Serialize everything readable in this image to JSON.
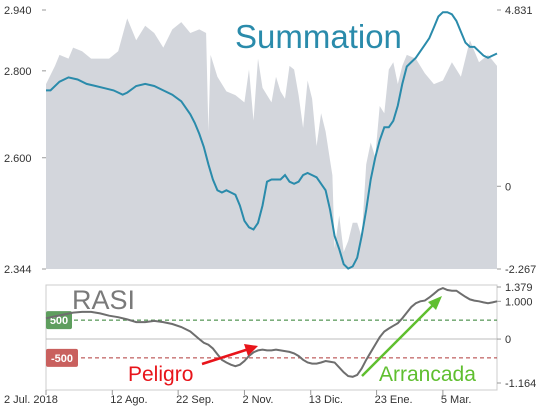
{
  "chart_data": [
    {
      "type": "area",
      "title": "Summation",
      "left_axis": {
        "ylim": [
          2.344,
          2.94
        ],
        "ticks": [
          "2.940",
          "2.800",
          "2.600",
          "2.344"
        ]
      },
      "right_axis": {
        "ylim": [
          -2.267,
          4.831
        ],
        "ticks": [
          "4.831",
          "0",
          "-2.267"
        ]
      },
      "x_labels": [
        "2 Jul. 2018",
        "12 Ago.",
        "22 Sep.",
        "2 Nov.",
        "13 Dic.",
        "23 Ene.",
        "5 Mar."
      ],
      "x_range": [
        0,
        100
      ],
      "x_label_pos": [
        0,
        14.7,
        29.3,
        44,
        58.7,
        73.3,
        88
      ],
      "series": [
        {
          "axis": "right",
          "style": "area",
          "x": [
            0,
            2,
            3,
            5,
            6,
            8,
            10,
            12,
            14,
            16,
            18,
            20,
            22,
            24,
            26,
            28,
            30,
            32,
            34,
            35.5,
            36,
            36.5,
            38,
            40,
            42,
            43,
            44,
            45,
            46,
            47,
            48,
            49,
            50,
            51,
            52,
            53,
            54,
            55,
            56,
            57,
            58,
            59,
            60,
            61,
            62,
            63,
            63.5,
            64,
            65,
            66,
            67,
            68,
            69,
            70,
            71,
            72,
            73,
            74,
            75,
            76,
            77,
            78,
            79,
            80,
            82,
            84,
            86,
            88,
            90,
            92,
            94,
            96,
            98,
            100
          ],
          "y": [
            2.8,
            3.3,
            3.6,
            3.5,
            3.8,
            3.7,
            3.5,
            3.5,
            3.5,
            3.7,
            4.6,
            4.0,
            4.4,
            4.2,
            3.8,
            4.3,
            4.5,
            4.2,
            4.3,
            4.2,
            1.5,
            3.6,
            3.0,
            2.6,
            2.5,
            2.4,
            2.3,
            3.2,
            1.8,
            3.5,
            2.7,
            2.5,
            2.3,
            3.0,
            2.6,
            2.4,
            3.3,
            3.2,
            2.5,
            1.6,
            2.9,
            2.4,
            1.1,
            2.0,
            1.5,
            0.7,
            0.3,
            -1.7,
            -0.8,
            -1.8,
            -1.5,
            -1.0,
            -1.0,
            -1.4,
            0.6,
            1.2,
            0.8,
            2.2,
            2.0,
            3.2,
            3.4,
            2.8,
            3.3,
            3.6,
            3.5,
            3.1,
            2.8,
            2.9,
            3.4,
            3.0,
            4.0,
            3.4,
            3.6,
            3.3
          ]
        },
        {
          "axis": "left",
          "style": "line",
          "x": [
            0,
            1,
            3,
            5,
            7,
            9,
            11,
            13,
            15,
            17,
            18,
            20,
            22,
            24,
            26,
            28,
            30,
            31,
            32,
            33,
            34,
            35,
            36,
            37,
            38,
            39,
            40,
            41,
            42,
            43,
            44,
            45,
            46,
            47,
            48,
            49,
            50,
            51,
            52,
            53,
            54,
            55,
            56,
            57,
            58,
            59,
            60,
            61,
            62,
            63,
            64,
            65,
            66,
            67,
            68,
            69,
            70,
            71,
            72,
            73,
            74,
            75,
            76,
            77,
            78,
            79,
            80,
            81,
            82,
            83,
            84,
            85,
            86,
            87,
            88,
            89,
            90,
            91,
            92,
            93,
            94,
            95,
            96,
            97,
            98,
            99,
            100
          ],
          "y": [
            2.755,
            2.755,
            2.775,
            2.785,
            2.78,
            2.77,
            2.765,
            2.76,
            2.755,
            2.745,
            2.75,
            2.765,
            2.77,
            2.765,
            2.755,
            2.745,
            2.73,
            2.715,
            2.7,
            2.68,
            2.655,
            2.625,
            2.585,
            2.55,
            2.525,
            2.52,
            2.525,
            2.52,
            2.515,
            2.49,
            2.455,
            2.44,
            2.435,
            2.45,
            2.49,
            2.545,
            2.55,
            2.55,
            2.55,
            2.56,
            2.545,
            2.54,
            2.545,
            2.56,
            2.565,
            2.56,
            2.555,
            2.54,
            2.525,
            2.48,
            2.42,
            2.39,
            2.355,
            2.345,
            2.35,
            2.37,
            2.42,
            2.48,
            2.55,
            2.6,
            2.64,
            2.67,
            2.67,
            2.685,
            2.72,
            2.77,
            2.81,
            2.82,
            2.83,
            2.845,
            2.86,
            2.875,
            2.9,
            2.925,
            2.935,
            2.935,
            2.93,
            2.915,
            2.89,
            2.865,
            2.855,
            2.855,
            2.845,
            2.835,
            2.83,
            2.835,
            2.84
          ]
        }
      ]
    },
    {
      "type": "line",
      "title": "RASI",
      "ylim": [
        -1.164,
        1.379
      ],
      "ticks": [
        "1.379",
        "1.000",
        "0",
        "-1.164"
      ],
      "levels": [
        {
          "label": "500",
          "value": 0.5,
          "color": "#5e9e5e",
          "line_color": "#2f7d2f"
        },
        {
          "label": "-500",
          "value": -0.5,
          "color": "#c9605e",
          "line_color": "#b03a3a"
        }
      ],
      "series": [
        {
          "x": [
            0,
            2,
            4,
            6,
            8,
            10,
            12,
            14,
            16,
            18,
            20,
            22,
            24,
            26,
            28,
            30,
            32,
            34,
            35,
            36,
            37,
            38,
            39,
            40,
            41,
            42,
            43,
            44,
            45,
            46,
            47,
            48,
            49,
            50,
            51,
            52,
            53,
            54,
            55,
            56,
            57,
            58,
            59,
            60,
            61,
            62,
            63,
            64,
            65,
            66,
            67,
            68,
            69,
            70,
            71,
            72,
            73,
            74,
            75,
            76,
            77,
            78,
            79,
            80,
            81,
            82,
            83,
            84,
            85,
            86,
            87,
            88,
            89,
            90,
            91,
            92,
            93,
            94,
            95,
            96,
            97,
            98,
            99,
            100
          ],
          "y": [
            0.55,
            0.6,
            0.65,
            0.7,
            0.72,
            0.72,
            0.68,
            0.62,
            0.58,
            0.52,
            0.45,
            0.45,
            0.48,
            0.45,
            0.4,
            0.32,
            0.2,
            0.0,
            -0.1,
            -0.15,
            -0.25,
            -0.4,
            -0.55,
            -0.62,
            -0.68,
            -0.72,
            -0.68,
            -0.58,
            -0.45,
            -0.35,
            -0.3,
            -0.28,
            -0.3,
            -0.3,
            -0.28,
            -0.3,
            -0.32,
            -0.34,
            -0.38,
            -0.45,
            -0.55,
            -0.62,
            -0.65,
            -0.65,
            -0.62,
            -0.58,
            -0.6,
            -0.62,
            -0.75,
            -0.88,
            -0.98,
            -1.0,
            -0.95,
            -0.78,
            -0.55,
            -0.35,
            -0.15,
            0.05,
            0.2,
            0.28,
            0.35,
            0.42,
            0.55,
            0.7,
            0.85,
            0.95,
            1.0,
            1.02,
            1.1,
            1.2,
            1.3,
            1.35,
            1.3,
            1.28,
            1.28,
            1.2,
            1.12,
            1.05,
            1.02,
            1.0,
            0.97,
            0.95,
            0.97,
            1.0
          ]
        }
      ],
      "annotations": [
        {
          "text": "Peligro",
          "color": "#e8141a"
        },
        {
          "text": "Arrancada",
          "color": "#5fbf2f"
        }
      ]
    }
  ]
}
